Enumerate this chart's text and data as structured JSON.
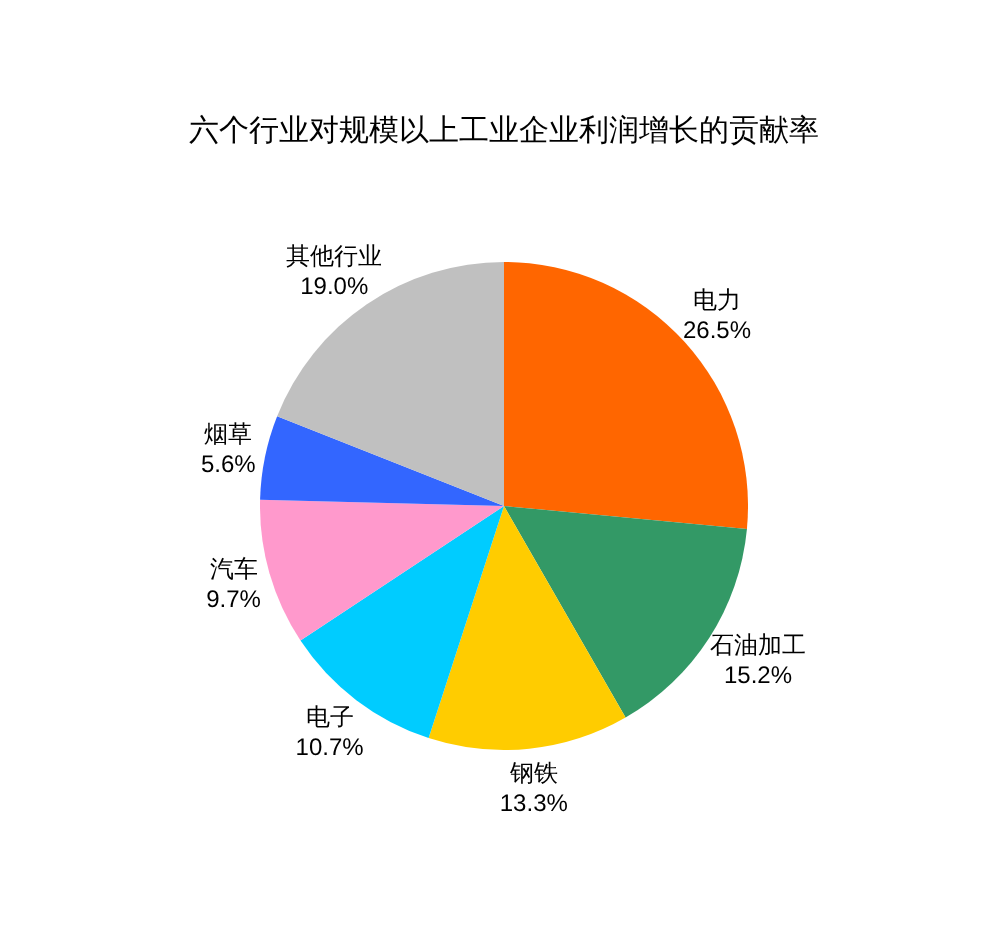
{
  "chart_data": {
    "type": "pie",
    "title": "六个行业对规模以上工业企业利润增长的贡献率",
    "categories": [
      "电力",
      "石油加工",
      "钢铁",
      "电子",
      "汽车",
      "烟草",
      "其他行业"
    ],
    "values": [
      26.5,
      15.2,
      13.3,
      10.7,
      9.7,
      5.6,
      19.0
    ],
    "colors": [
      "#ff6600",
      "#339966",
      "#ffcc00",
      "#00ccff",
      "#ff99cc",
      "#3366ff",
      "#c0c0c0"
    ],
    "value_labels": [
      "26.5%",
      "15.2%",
      "13.3%",
      "10.7%",
      "9.7%",
      "5.6%",
      "19.0%"
    ]
  }
}
